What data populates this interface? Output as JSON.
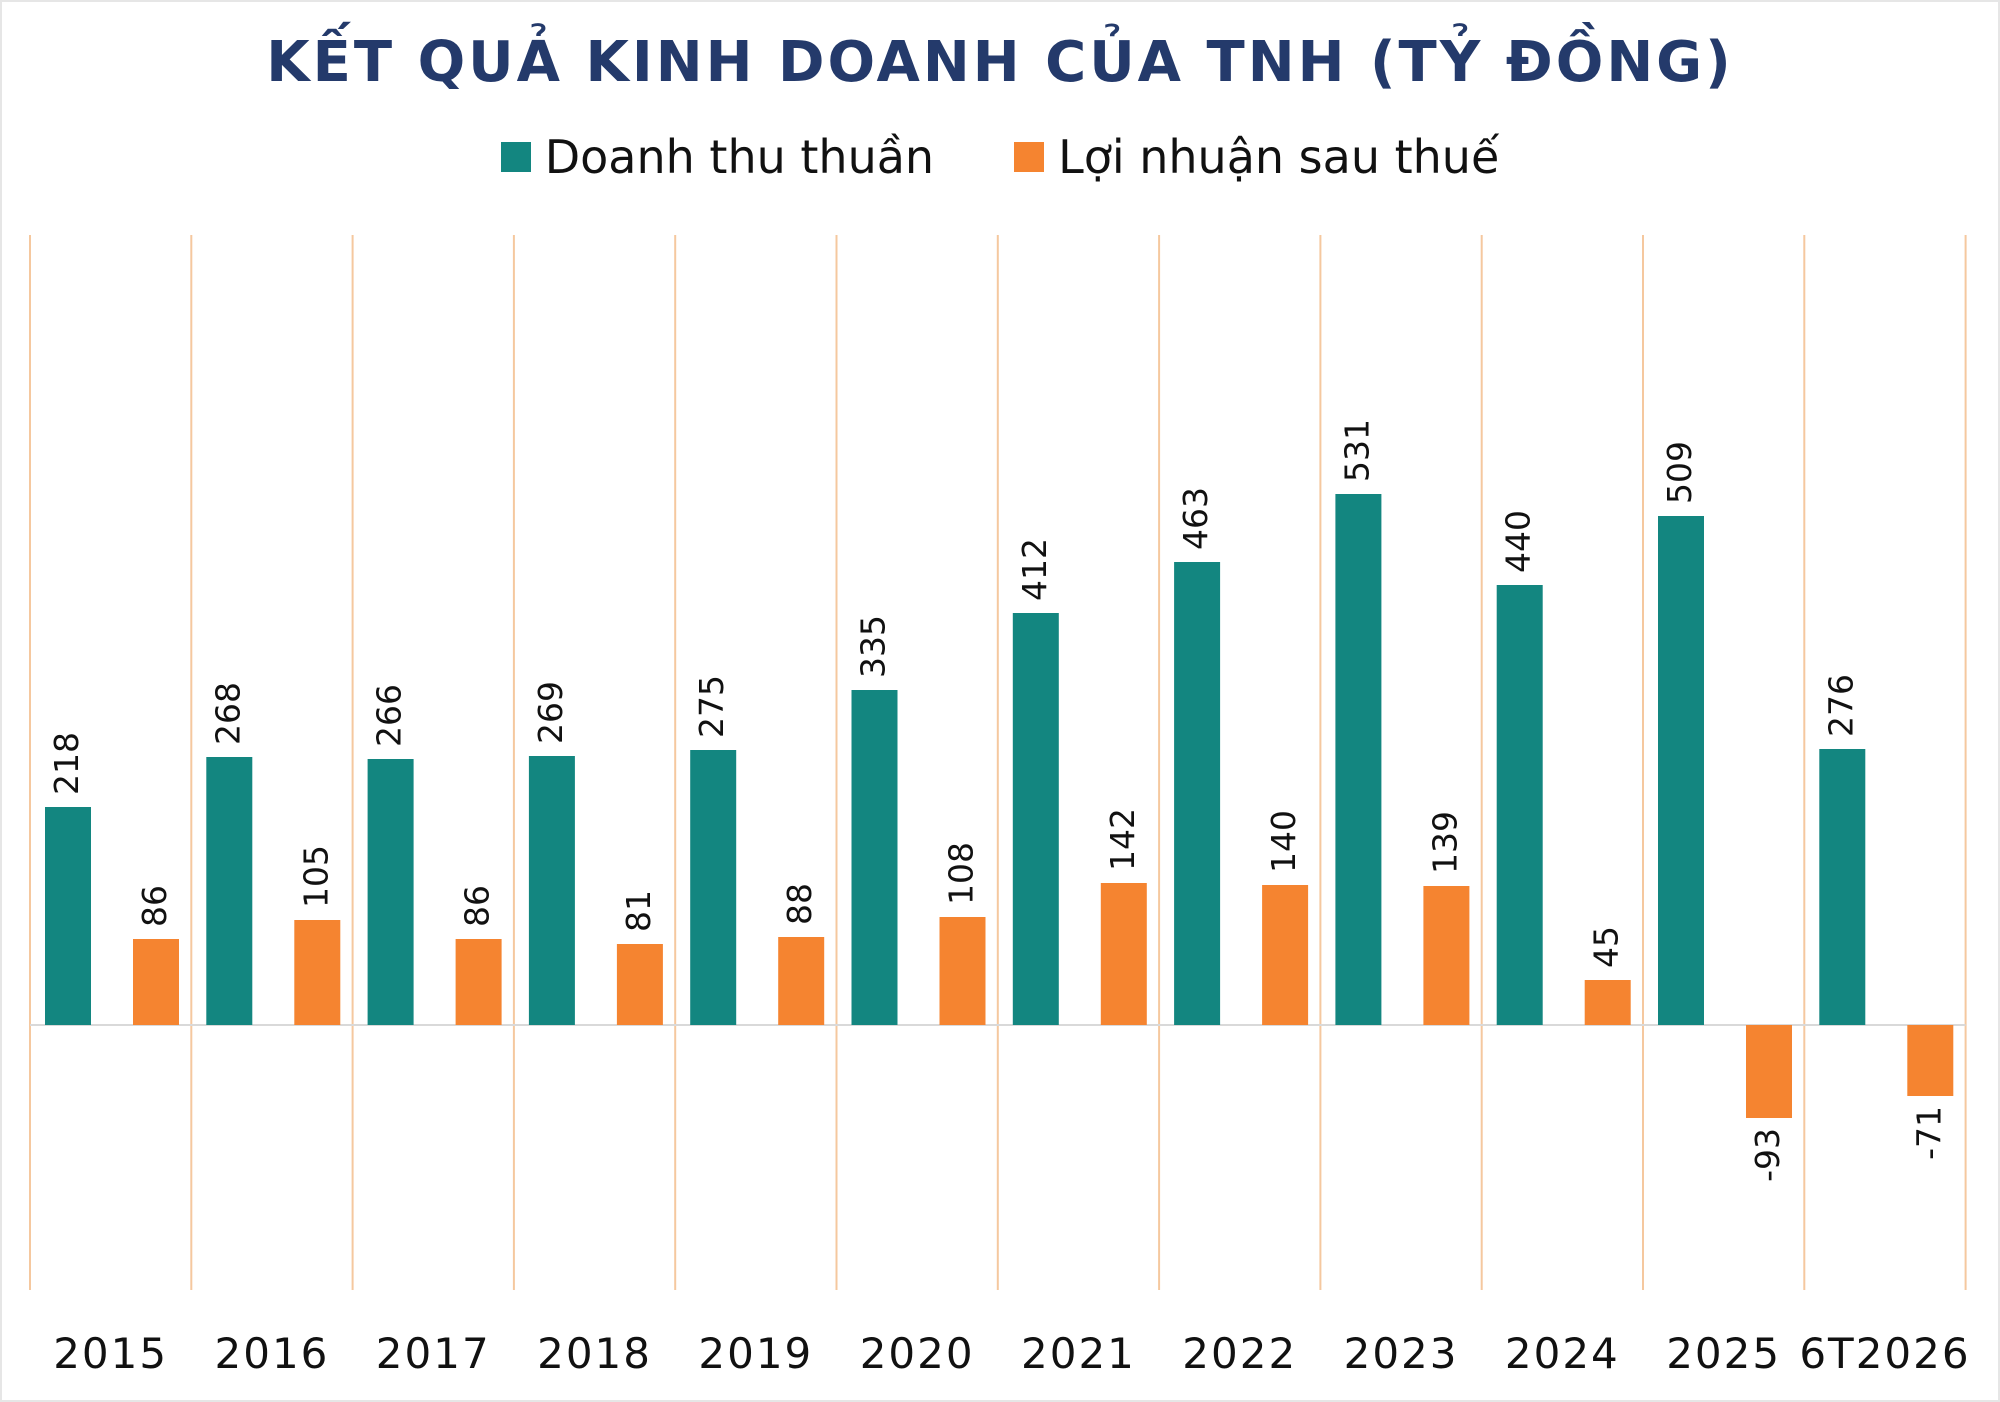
{
  "chart_data": {
    "type": "bar",
    "title": "KẾT QUẢ KINH DOANH CỦA TNH (TỶ ĐỒNG)",
    "categories": [
      "2015",
      "2016",
      "2017",
      "2018",
      "2019",
      "2020",
      "2021",
      "2022",
      "2023",
      "2024",
      "2025",
      "6T2026"
    ],
    "series": [
      {
        "name": "Doanh thu thuần",
        "color": "#138680",
        "values": [
          218,
          268,
          266,
          269,
          275,
          335,
          412,
          463,
          531,
          440,
          509,
          276
        ]
      },
      {
        "name": "Lợi nhuận sau thuế",
        "color": "#f58430",
        "values": [
          86,
          105,
          86,
          81,
          88,
          108,
          142,
          140,
          139,
          45,
          -93,
          -71
        ]
      }
    ],
    "xlabel": "",
    "ylabel": "",
    "ylim": [
      -200,
      600
    ],
    "grid": "vertical category separators",
    "legend": "top-center",
    "colors": {
      "separator": "#f5c89f",
      "title": "#243a6b",
      "axis": "#d9d9d9"
    }
  }
}
